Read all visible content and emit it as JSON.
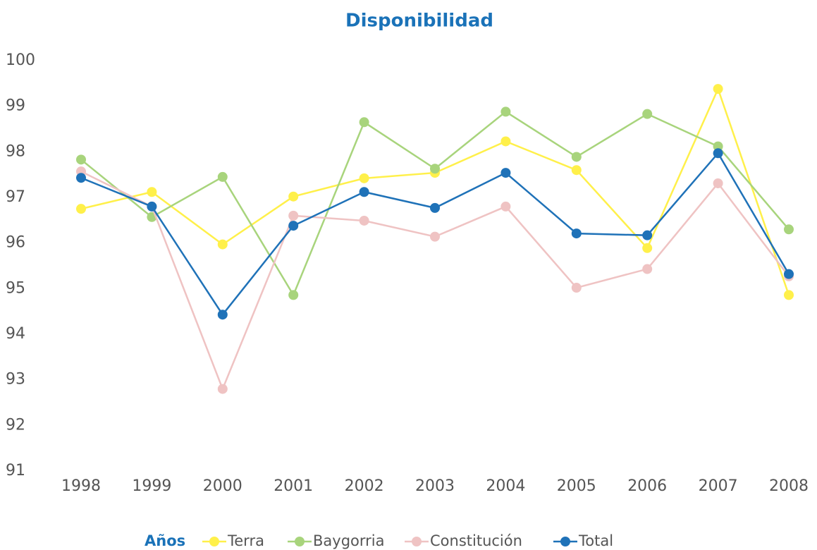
{
  "chart_data": {
    "type": "line",
    "title": "Disponibilidad",
    "x_label": "Años",
    "categories": [
      "1998",
      "1999",
      "2000",
      "2001",
      "2002",
      "2003",
      "2004",
      "2005",
      "2006",
      "2007",
      "2008"
    ],
    "series": [
      {
        "name": "Terra",
        "color": "#fff04a",
        "values": [
          96.75,
          97.12,
          95.97,
          97.02,
          97.42,
          97.54,
          98.23,
          97.6,
          95.89,
          99.38,
          94.86
        ]
      },
      {
        "name": "Baygorria",
        "color": "#a8d47c",
        "values": [
          97.83,
          96.57,
          97.45,
          94.86,
          98.65,
          97.63,
          98.88,
          97.89,
          98.83,
          98.12,
          96.3
        ]
      },
      {
        "name": "Constitución",
        "color": "#efc3c3",
        "values": [
          97.57,
          96.8,
          92.8,
          96.6,
          96.49,
          96.14,
          96.8,
          95.02,
          95.43,
          97.31,
          95.27
        ]
      },
      {
        "name": "Total",
        "color": "#1f72b8",
        "values": [
          97.43,
          96.8,
          94.43,
          96.38,
          97.12,
          96.77,
          97.54,
          96.21,
          96.17,
          97.97,
          95.32
        ]
      }
    ],
    "ylim": [
      91,
      100
    ],
    "yticks": [
      91,
      92,
      93,
      94,
      95,
      96,
      97,
      98,
      99,
      100
    ],
    "legend": "bottom"
  }
}
